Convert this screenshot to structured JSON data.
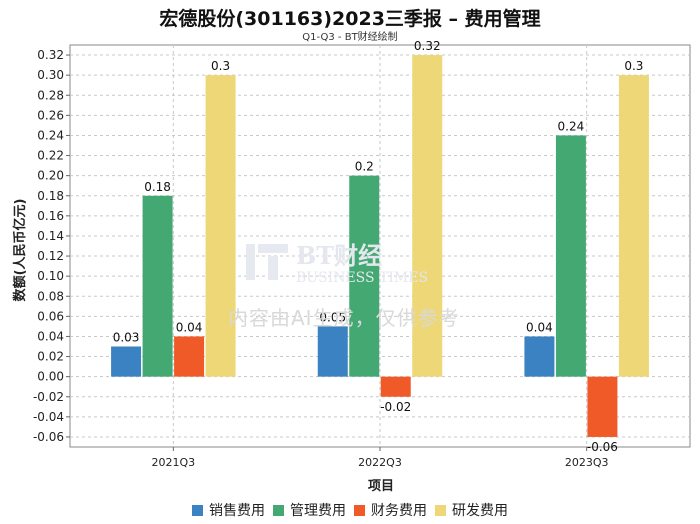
{
  "chart_data": {
    "type": "bar",
    "title": "宏德股份(301163)2023三季报 – 费用管理",
    "subtitle": "Q1-Q3 - BT财经绘制",
    "xlabel": "项目",
    "ylabel": "数额(人民币亿元)",
    "ylim": [
      -0.07,
      0.33
    ],
    "yticks": [
      -0.06,
      -0.04,
      -0.02,
      0.0,
      0.02,
      0.04,
      0.06,
      0.08,
      0.1,
      0.12,
      0.14,
      0.16,
      0.18,
      0.2,
      0.22,
      0.24,
      0.26,
      0.28,
      0.3,
      0.32
    ],
    "ytick_labels": [
      "-0.06",
      "-0.04",
      "-0.02",
      "0.00",
      "0.02",
      "0.04",
      "0.06",
      "0.08",
      "0.10",
      "0.12",
      "0.14",
      "0.16",
      "0.18",
      "0.20",
      "0.22",
      "0.24",
      "0.26",
      "0.28",
      "0.30",
      "0.32"
    ],
    "grid": true,
    "legend_position": "bottom",
    "categories": [
      "2021Q3",
      "2022Q3",
      "2023Q3"
    ],
    "series": [
      {
        "name": "销售费用",
        "color": "#3a82c2",
        "values": [
          0.03,
          0.05,
          0.04
        ],
        "labels": [
          "0.03",
          "0.05",
          "0.04"
        ]
      },
      {
        "name": "管理费用",
        "color": "#43a872",
        "values": [
          0.18,
          0.2,
          0.24
        ],
        "labels": [
          "0.18",
          "0.2",
          "0.24"
        ]
      },
      {
        "name": "财务费用",
        "color": "#f05a28",
        "values": [
          0.04,
          -0.02,
          -0.06
        ],
        "labels": [
          "0.04",
          "-0.02",
          "-0.06"
        ]
      },
      {
        "name": "研发费用",
        "color": "#edd776",
        "values": [
          0.3,
          0.32,
          0.3
        ],
        "labels": [
          "0.3",
          "0.32",
          "0.3"
        ]
      }
    ]
  },
  "watermark": {
    "logo_text": "BT财经",
    "logo_subtext": "BUSINESS TIMES",
    "notice": "内容由AI生成，仅供参考"
  }
}
